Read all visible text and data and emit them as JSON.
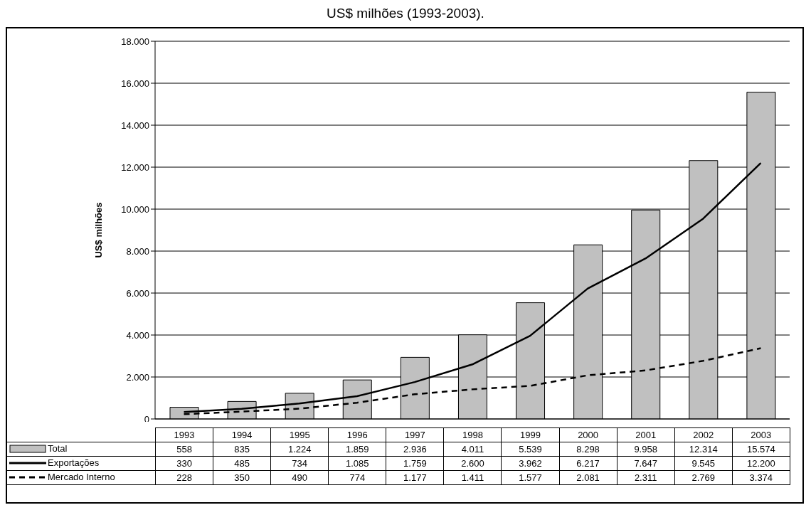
{
  "chart_data": {
    "type": "bar",
    "title": "US$ milhões (1993-2003).",
    "ylabel": "US$ milhões",
    "categories": [
      "1993",
      "1994",
      "1995",
      "1996",
      "1997",
      "1998",
      "1999",
      "2000",
      "2001",
      "2002",
      "2003"
    ],
    "series": [
      {
        "name": "Total",
        "color": "#c0c0c0",
        "values": [
          558,
          835,
          1224,
          1859,
          2936,
          4011,
          5539,
          8298,
          9958,
          12314,
          15574
        ],
        "value_labels": [
          "558",
          "835",
          "1.224",
          "1.859",
          "2.936",
          "4.011",
          "5.539",
          "8.298",
          "9.958",
          "12.314",
          "15.574"
        ]
      },
      {
        "name": "Exportações",
        "type": "line",
        "color": "#000000",
        "line_style": "solid",
        "values": [
          330,
          485,
          734,
          1085,
          1759,
          2600,
          3962,
          6217,
          7647,
          9545,
          12200
        ],
        "value_labels": [
          "330",
          "485",
          "734",
          "1.085",
          "1.759",
          "2.600",
          "3.962",
          "6.217",
          "7.647",
          "9.545",
          "12.200"
        ]
      },
      {
        "name": "Mercado Interno",
        "type": "line",
        "color": "#000000",
        "line_style": "dashed",
        "values": [
          228,
          350,
          490,
          774,
          1177,
          1411,
          1577,
          2081,
          2311,
          2769,
          3374
        ],
        "value_labels": [
          "228",
          "350",
          "490",
          "774",
          "1.177",
          "1.411",
          "1.577",
          "2.081",
          "2.311",
          "2.769",
          "3.374"
        ]
      }
    ],
    "ylim": [
      0,
      18000
    ],
    "yticks": [
      0,
      {
        "value": 2000,
        "label": "2.000"
      },
      {
        "value": 4000,
        "label": "4.000"
      },
      {
        "value": 6000,
        "label": "6.000"
      },
      {
        "value": 8000,
        "label": "8.000"
      },
      {
        "value": 10000,
        "label": "10.000"
      },
      {
        "value": 12000,
        "label": "12.000"
      },
      {
        "value": 14000,
        "label": "14.000"
      },
      {
        "value": 16000,
        "label": "16.000"
      },
      {
        "value": 18000,
        "label": "18.000"
      }
    ],
    "grid": "y",
    "legend": "bottom",
    "marker": "none",
    "tick_labels": "y"
  }
}
